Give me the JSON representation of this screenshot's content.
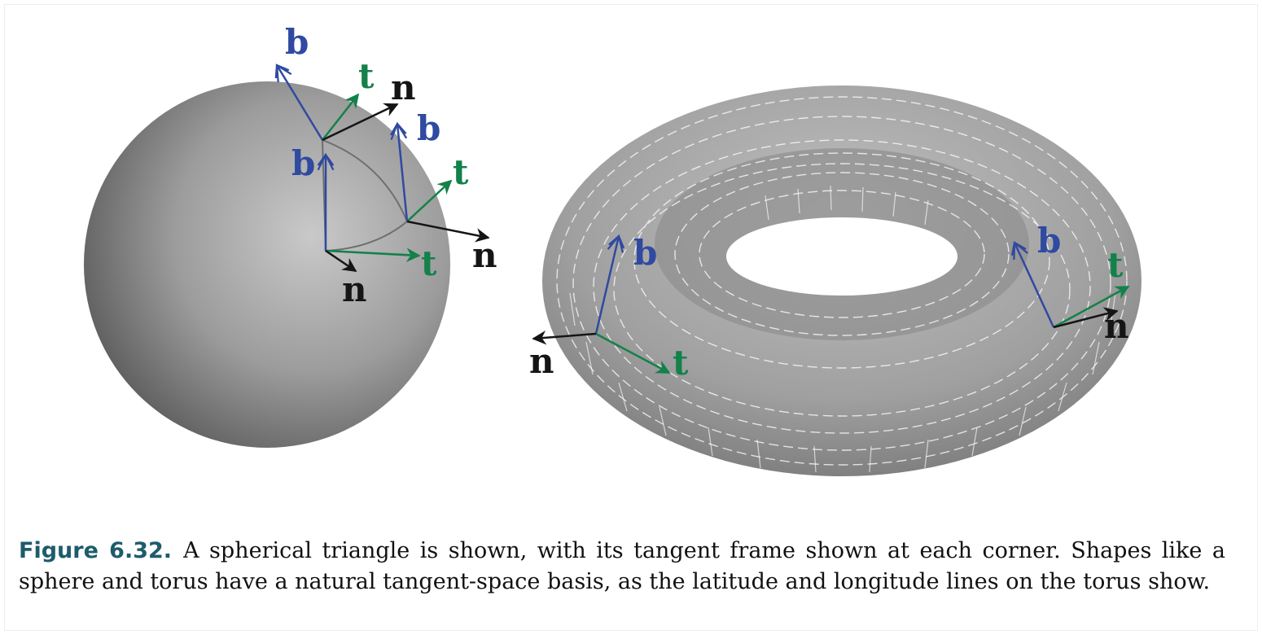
{
  "figure": {
    "sphere_labels": {
      "top_b": "b",
      "top_t": "t",
      "top_n": "n",
      "mid_b": "b",
      "right_b": "b",
      "right_t": "t",
      "right_n": "n",
      "bottom_t": "t",
      "bottom_n": "n"
    },
    "torus_labels": {
      "left_b": "b",
      "left_t": "t",
      "left_n": "n",
      "right_b": "b",
      "right_t": "t",
      "right_n": "n"
    },
    "colors": {
      "bitangent": "#2f4aa0",
      "tangent": "#12814a",
      "normal": "#151515",
      "caption_label": "#1d5c6b"
    }
  },
  "caption": {
    "label": "Figure 6.32.",
    "text": "A spherical triangle is shown, with its tangent frame shown at each corner. Shapes like a sphere and torus have a natural tangent-space basis, as the latitude and longitude lines on the torus show."
  }
}
